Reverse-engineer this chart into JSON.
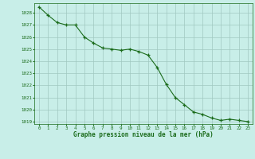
{
  "x": [
    0,
    1,
    2,
    3,
    4,
    5,
    6,
    7,
    8,
    9,
    10,
    11,
    12,
    13,
    14,
    15,
    16,
    17,
    18,
    19,
    20,
    21,
    22,
    23
  ],
  "y": [
    1028.5,
    1027.8,
    1027.2,
    1027.0,
    1027.0,
    1026.0,
    1025.5,
    1025.1,
    1025.0,
    1024.9,
    1025.0,
    1024.8,
    1024.5,
    1023.5,
    1022.1,
    1021.0,
    1020.4,
    1019.8,
    1019.6,
    1019.3,
    1019.1,
    1019.2,
    1019.1,
    1019.0
  ],
  "line_color": "#1a6b1a",
  "marker": "+",
  "marker_color": "#1a6b1a",
  "bg_color": "#c8eee8",
  "grid_color": "#a0c8c0",
  "xlabel": "Graphe pression niveau de la mer (hPa)",
  "xlabel_color": "#1a6b1a",
  "tick_color": "#1a6b1a",
  "ylim_min": 1018.8,
  "ylim_max": 1028.8,
  "xlim_min": -0.5,
  "xlim_max": 23.5,
  "yticks": [
    1019,
    1020,
    1021,
    1022,
    1023,
    1024,
    1025,
    1026,
    1027,
    1028
  ],
  "xticks": [
    0,
    1,
    2,
    3,
    4,
    5,
    6,
    7,
    8,
    9,
    10,
    11,
    12,
    13,
    14,
    15,
    16,
    17,
    18,
    19,
    20,
    21,
    22,
    23
  ]
}
